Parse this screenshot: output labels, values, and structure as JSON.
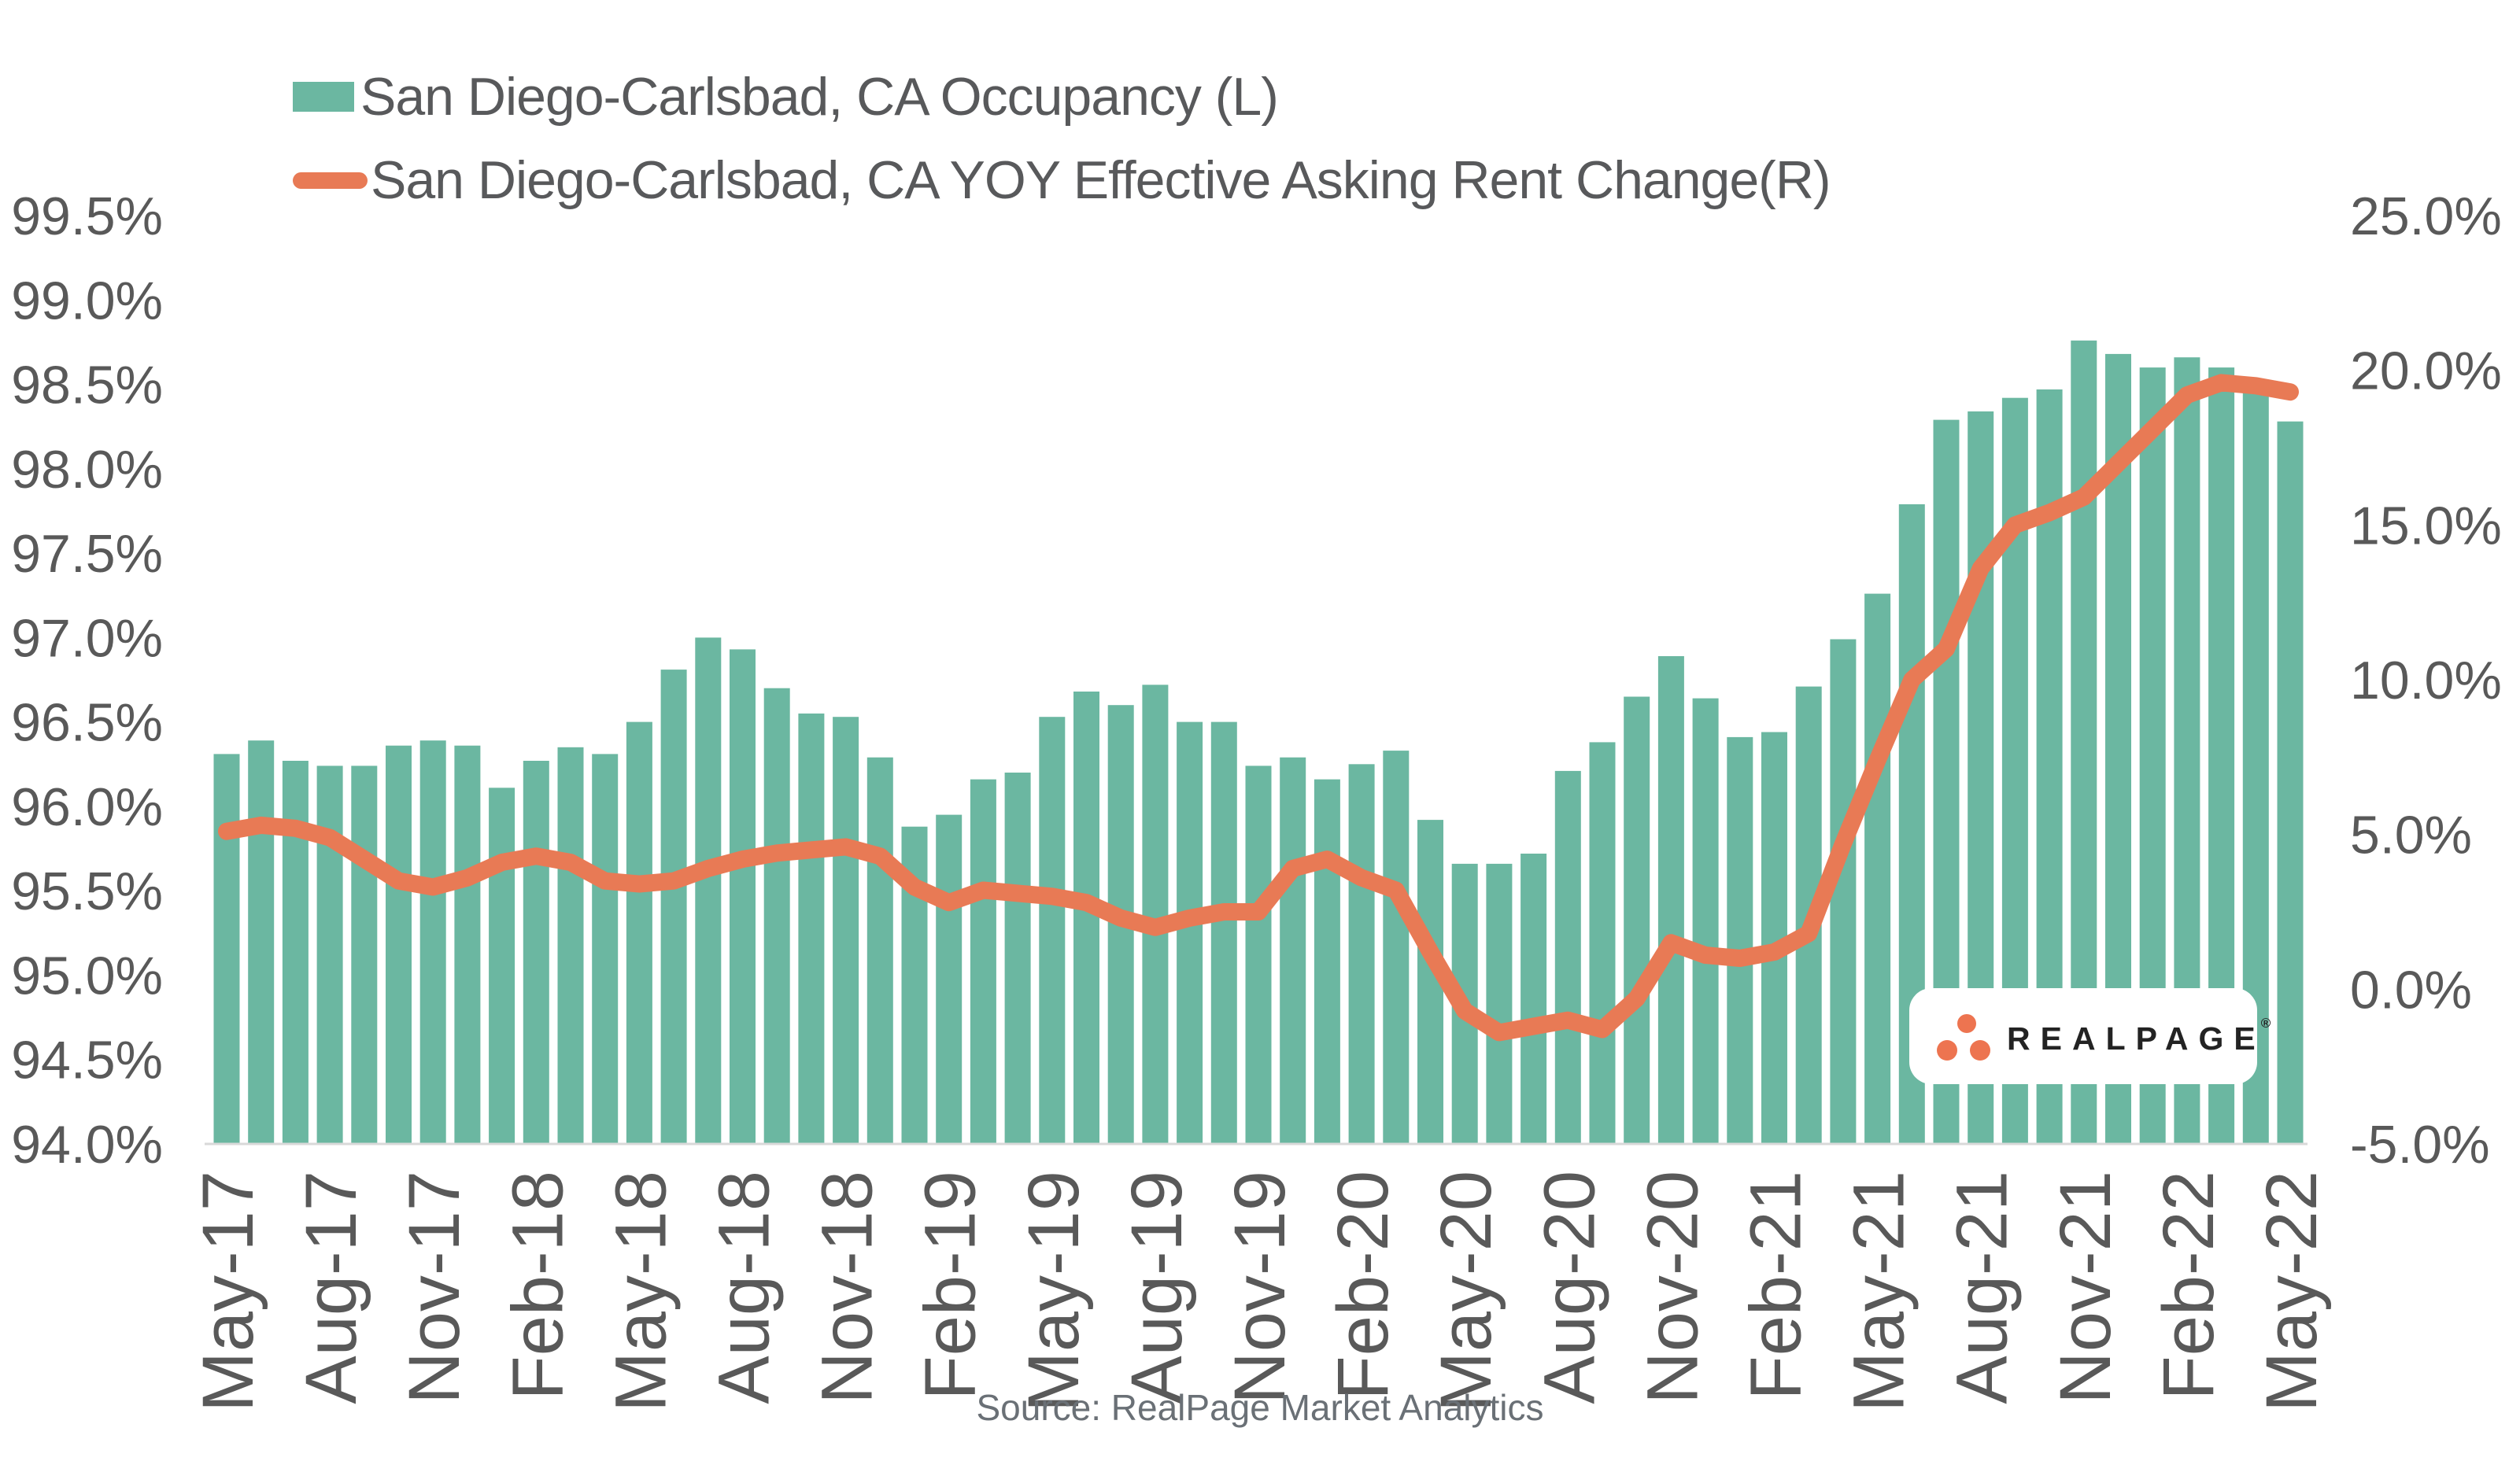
{
  "legend": {
    "items": [
      {
        "label": "San Diego-Carlsbad, CA Occupancy (L)",
        "series": "occupancy",
        "swatch": "bar-square"
      },
      {
        "label": "San Diego-Carlsbad, CA YOY Effective Asking Rent Change(R)",
        "series": "rent_change",
        "swatch": "line-pill"
      }
    ]
  },
  "source_note": "Source: RealPage Market Analytics",
  "logo": {
    "brand": "REALPAGE",
    "registered_mark": "®",
    "dots_icon": "three-dots-triangle"
  },
  "colors": {
    "bar": "#6bb7a1",
    "line": "#e87a55",
    "axis_text": "#595959",
    "legend_text": "#58595b",
    "source_text": "#6a7076",
    "baseline": "#d9d9d9",
    "logo_dot": "#ed7450",
    "logo_text": "#232323",
    "background": "#ffffff"
  },
  "chart_data": {
    "type": [
      "bar",
      "line"
    ],
    "title": "",
    "grid": false,
    "legend_position": "top-left",
    "categories": [
      "May-17",
      "Jun-17",
      "Jul-17",
      "Aug-17",
      "Sep-17",
      "Oct-17",
      "Nov-17",
      "Dec-17",
      "Jan-18",
      "Feb-18",
      "Mar-18",
      "Apr-18",
      "May-18",
      "Jun-18",
      "Jul-18",
      "Aug-18",
      "Sep-18",
      "Oct-18",
      "Nov-18",
      "Dec-18",
      "Jan-19",
      "Feb-19",
      "Mar-19",
      "Apr-19",
      "May-19",
      "Jun-19",
      "Jul-19",
      "Aug-19",
      "Sep-19",
      "Oct-19",
      "Nov-19",
      "Dec-19",
      "Jan-20",
      "Feb-20",
      "Mar-20",
      "Apr-20",
      "May-20",
      "Jun-20",
      "Jul-20",
      "Aug-20",
      "Sep-20",
      "Oct-20",
      "Nov-20",
      "Dec-20",
      "Jan-21",
      "Feb-21",
      "Mar-21",
      "Apr-21",
      "May-21",
      "Jun-21",
      "Jul-21",
      "Aug-21",
      "Sep-21",
      "Oct-21",
      "Nov-21",
      "Dec-21",
      "Jan-22",
      "Feb-22",
      "Mar-22",
      "Apr-22",
      "May-22"
    ],
    "x_tick_labels": [
      "May-17",
      "Aug-17",
      "Nov-17",
      "Feb-18",
      "May-18",
      "Aug-18",
      "Nov-18",
      "Feb-19",
      "May-19",
      "Aug-19",
      "Nov-19",
      "Feb-20",
      "May-20",
      "Aug-20",
      "Nov-20",
      "Feb-21",
      "May-21",
      "Aug-21",
      "Nov-21",
      "Feb-22",
      "May-22"
    ],
    "x_tick_every": 3,
    "series": [
      {
        "name": "San Diego-Carlsbad, CA Occupancy (L)",
        "type": "bar",
        "axis": "left",
        "color": "#6bb7a1",
        "unit": "%",
        "values": [
          96.31,
          96.39,
          96.27,
          96.24,
          96.24,
          96.36,
          96.39,
          96.36,
          96.11,
          96.27,
          96.35,
          96.31,
          96.5,
          96.81,
          97.0,
          96.93,
          96.7,
          96.55,
          96.53,
          96.29,
          95.88,
          95.95,
          96.16,
          96.2,
          96.53,
          96.68,
          96.6,
          96.72,
          96.5,
          96.5,
          96.24,
          96.29,
          96.16,
          96.25,
          96.33,
          95.92,
          95.66,
          95.66,
          95.72,
          96.21,
          96.38,
          96.65,
          96.89,
          96.64,
          96.41,
          96.44,
          96.71,
          96.99,
          97.26,
          97.79,
          98.29,
          98.34,
          98.42,
          98.47,
          98.76,
          98.68,
          98.6,
          98.66,
          98.6,
          98.45,
          98.28
        ]
      },
      {
        "name": "San Diego-Carlsbad, CA YOY Effective Asking Rent Change(R)",
        "type": "line",
        "axis": "right",
        "color": "#e87a55",
        "unit": "%",
        "values": [
          5.1,
          5.3,
          5.2,
          4.9,
          4.2,
          3.5,
          3.3,
          3.6,
          4.1,
          4.3,
          4.1,
          3.5,
          3.4,
          3.5,
          3.9,
          4.2,
          4.4,
          4.5,
          4.6,
          4.3,
          3.3,
          2.8,
          3.2,
          3.1,
          3.0,
          2.8,
          2.3,
          2.0,
          2.3,
          2.5,
          2.5,
          3.9,
          4.2,
          3.6,
          3.2,
          1.2,
          -0.7,
          -1.4,
          -1.2,
          -1.0,
          -1.3,
          -0.3,
          1.5,
          1.1,
          1.0,
          1.2,
          1.8,
          4.7,
          7.4,
          10.0,
          11.0,
          13.6,
          15.0,
          15.4,
          15.9,
          17.0,
          18.1,
          19.2,
          19.6,
          19.5,
          19.3
        ]
      }
    ],
    "left_axis": {
      "min": 94.0,
      "max": 99.5,
      "tick_step": 0.5,
      "tick_labels": [
        "99.5%",
        "99.0%",
        "98.5%",
        "98.0%",
        "97.5%",
        "97.0%",
        "96.5%",
        "96.0%",
        "95.5%",
        "95.0%",
        "94.5%",
        "94.0%"
      ]
    },
    "right_axis": {
      "min": -5.0,
      "max": 25.0,
      "tick_step": 5.0,
      "tick_labels": [
        "25.0%",
        "20.0%",
        "15.0%",
        "10.0%",
        "5.0%",
        "0.0%",
        "-5.0%"
      ]
    }
  }
}
